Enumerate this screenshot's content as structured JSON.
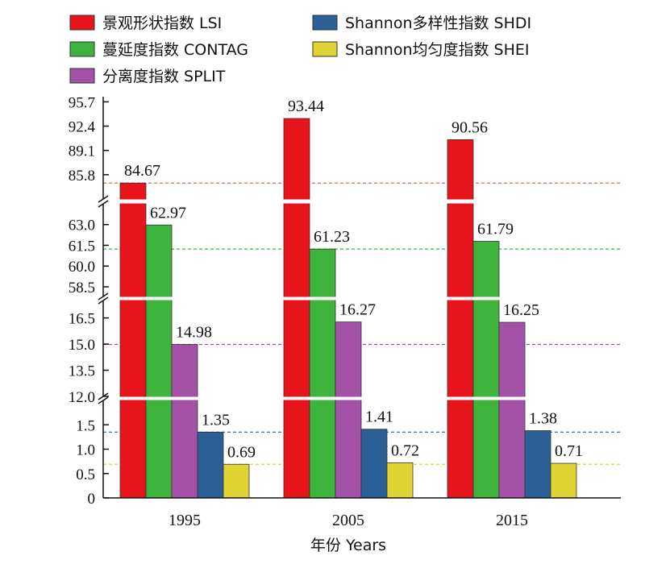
{
  "chart_data": {
    "type": "bar",
    "categories": [
      "1995",
      "2005",
      "2015"
    ],
    "xlabel": "年份 Years",
    "series": [
      {
        "name": "景观形状指数 LSI",
        "color": "#e8141c",
        "values": [
          84.67,
          93.44,
          90.56
        ]
      },
      {
        "name": "蔓延度指数 CONTAG",
        "color": "#3eb43c",
        "values": [
          62.97,
          61.23,
          61.79
        ]
      },
      {
        "name": "分离度指数 SPLIT",
        "color": "#a452a8",
        "values": [
          14.98,
          16.27,
          16.25
        ]
      },
      {
        "name": "Shannon多样性指数 SHDI",
        "color": "#2b5f95",
        "values": [
          1.35,
          1.41,
          1.38
        ]
      },
      {
        "name": "Shannon均匀度指数 SHEI",
        "color": "#e0d434",
        "values": [
          0.69,
          0.72,
          0.71
        ]
      }
    ],
    "y_segments": [
      {
        "range": [
          0,
          2.0
        ],
        "ticks": [
          "0",
          "0.5",
          "1.0",
          "1.5"
        ]
      },
      {
        "range": [
          12.0,
          17.5
        ],
        "ticks": [
          "12.0",
          "13.5",
          "15.0",
          "16.5"
        ]
      },
      {
        "range": [
          57.8,
          64.5
        ],
        "ticks": [
          "58.5",
          "60.0",
          "61.5",
          "63.0"
        ]
      },
      {
        "range": [
          82.5,
          96.4
        ],
        "ticks": [
          "85.8",
          "89.1",
          "92.4",
          "95.7"
        ]
      }
    ],
    "reference_lines": [
      {
        "value": 84.67,
        "segment": 3,
        "color": "#d9534f"
      },
      {
        "value": 61.23,
        "segment": 2,
        "color": "#3eb43c"
      },
      {
        "value": 14.98,
        "segment": 1,
        "color": "#a452a8"
      },
      {
        "value": 1.35,
        "segment": 0,
        "color": "#2b5f95"
      },
      {
        "value": 0.69,
        "segment": 0,
        "color": "#e0d434"
      }
    ],
    "legend_position": "top",
    "grid": false
  }
}
